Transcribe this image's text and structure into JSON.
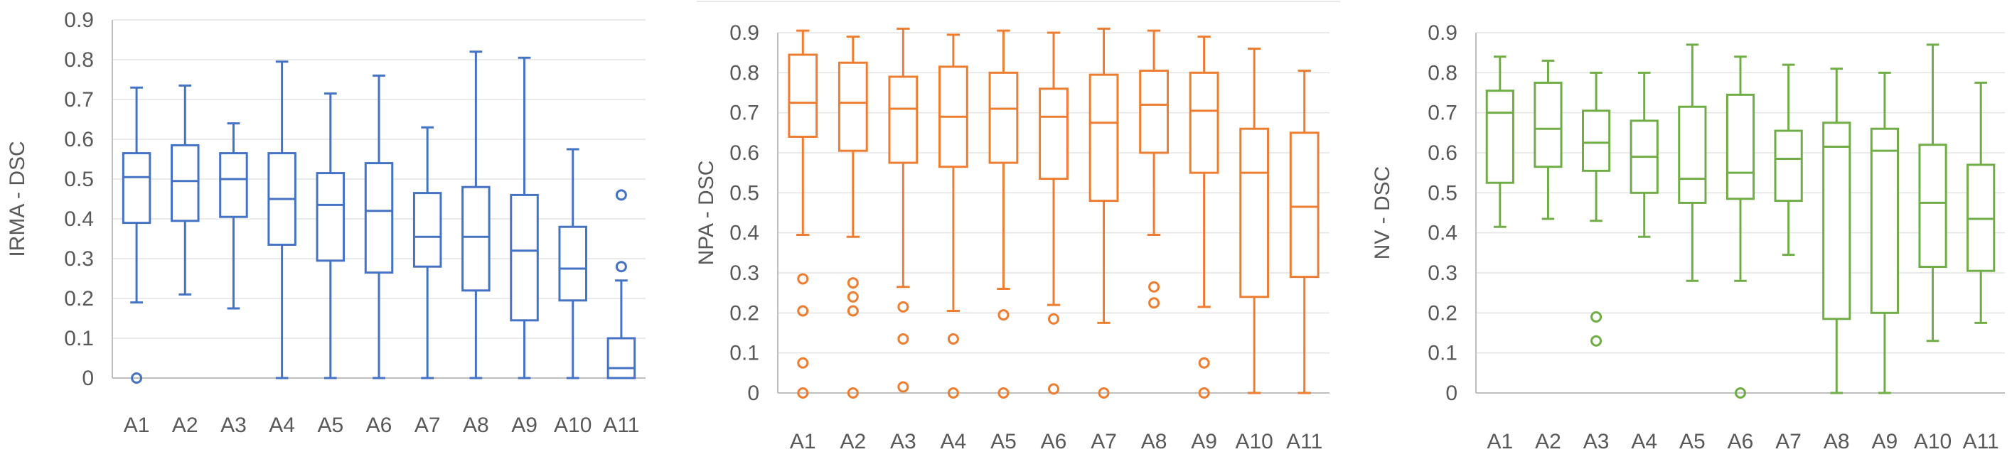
{
  "chart_data": [
    {
      "type": "boxplot",
      "ylabel": "IRMA - DSC",
      "ylim": [
        0,
        0.9
      ],
      "yticks": [
        "0",
        "0.1",
        "0.2",
        "0.3",
        "0.4",
        "0.5",
        "0.6",
        "0.7",
        "0.8",
        "0.9"
      ],
      "categories": [
        "A1",
        "A2",
        "A3",
        "A4",
        "A5",
        "A6",
        "A7",
        "A8",
        "A9",
        "A10",
        "A11"
      ],
      "color": "#4472C4",
      "grid": true,
      "boxes": [
        {
          "min": 0.19,
          "q1": 0.39,
          "median": 0.505,
          "q3": 0.565,
          "max": 0.73,
          "outliers": [
            0.0
          ]
        },
        {
          "min": 0.21,
          "q1": 0.395,
          "median": 0.495,
          "q3": 0.585,
          "max": 0.735,
          "outliers": []
        },
        {
          "min": 0.175,
          "q1": 0.405,
          "median": 0.5,
          "q3": 0.565,
          "max": 0.64,
          "outliers": []
        },
        {
          "min": 0.0,
          "q1": 0.335,
          "median": 0.45,
          "q3": 0.565,
          "max": 0.795,
          "outliers": []
        },
        {
          "min": 0.0,
          "q1": 0.295,
          "median": 0.435,
          "q3": 0.515,
          "max": 0.715,
          "outliers": []
        },
        {
          "min": 0.0,
          "q1": 0.265,
          "median": 0.42,
          "q3": 0.54,
          "max": 0.76,
          "outliers": []
        },
        {
          "min": 0.0,
          "q1": 0.28,
          "median": 0.355,
          "q3": 0.465,
          "max": 0.63,
          "outliers": []
        },
        {
          "min": 0.0,
          "q1": 0.22,
          "median": 0.355,
          "q3": 0.48,
          "max": 0.82,
          "outliers": []
        },
        {
          "min": 0.0,
          "q1": 0.145,
          "median": 0.32,
          "q3": 0.46,
          "max": 0.805,
          "outliers": []
        },
        {
          "min": 0.0,
          "q1": 0.195,
          "median": 0.275,
          "q3": 0.38,
          "max": 0.575,
          "outliers": []
        },
        {
          "min": 0.0,
          "q1": 0.0,
          "median": 0.025,
          "q3": 0.1,
          "max": 0.245,
          "outliers": [
            0.28,
            0.46
          ]
        }
      ]
    },
    {
      "type": "boxplot",
      "ylabel": "NPA - DSC",
      "ylim": [
        0,
        0.9
      ],
      "yticks": [
        "0",
        "0.1",
        "0.2",
        "0.3",
        "0.4",
        "0.5",
        "0.6",
        "0.7",
        "0.8",
        "0.9"
      ],
      "categories": [
        "A1",
        "A2",
        "A3",
        "A4",
        "A5",
        "A6",
        "A7",
        "A8",
        "A9",
        "A10",
        "A11"
      ],
      "color": "#ED7D31",
      "grid": true,
      "boxes": [
        {
          "min": 0.395,
          "q1": 0.64,
          "median": 0.725,
          "q3": 0.845,
          "max": 0.905,
          "outliers": [
            0.285,
            0.205,
            0.075,
            0.0
          ]
        },
        {
          "min": 0.39,
          "q1": 0.605,
          "median": 0.725,
          "q3": 0.825,
          "max": 0.89,
          "outliers": [
            0.275,
            0.24,
            0.205,
            0.0
          ]
        },
        {
          "min": 0.265,
          "q1": 0.575,
          "median": 0.71,
          "q3": 0.79,
          "max": 0.91,
          "outliers": [
            0.215,
            0.135,
            0.015
          ]
        },
        {
          "min": 0.205,
          "q1": 0.565,
          "median": 0.69,
          "q3": 0.815,
          "max": 0.895,
          "outliers": [
            0.135,
            0.0
          ]
        },
        {
          "min": 0.26,
          "q1": 0.575,
          "median": 0.71,
          "q3": 0.8,
          "max": 0.905,
          "outliers": [
            0.195,
            0.0
          ]
        },
        {
          "min": 0.22,
          "q1": 0.535,
          "median": 0.69,
          "q3": 0.76,
          "max": 0.9,
          "outliers": [
            0.185,
            0.01
          ]
        },
        {
          "min": 0.175,
          "q1": 0.48,
          "median": 0.675,
          "q3": 0.795,
          "max": 0.91,
          "outliers": [
            0.0
          ]
        },
        {
          "min": 0.395,
          "q1": 0.6,
          "median": 0.72,
          "q3": 0.805,
          "max": 0.905,
          "outliers": [
            0.265,
            0.225
          ]
        },
        {
          "min": 0.215,
          "q1": 0.55,
          "median": 0.705,
          "q3": 0.8,
          "max": 0.89,
          "outliers": [
            0.075,
            0.0
          ]
        },
        {
          "min": 0.0,
          "q1": 0.24,
          "median": 0.55,
          "q3": 0.66,
          "max": 0.86,
          "outliers": []
        },
        {
          "min": 0.0,
          "q1": 0.29,
          "median": 0.465,
          "q3": 0.65,
          "max": 0.805,
          "outliers": []
        }
      ]
    },
    {
      "type": "boxplot",
      "ylabel": "NV - DSC",
      "ylim": [
        0,
        0.9
      ],
      "yticks": [
        "0",
        "0.1",
        "0.2",
        "0.3",
        "0.4",
        "0.5",
        "0.6",
        "0.7",
        "0.8",
        "0.9"
      ],
      "categories": [
        "A1",
        "A2",
        "A3",
        "A4",
        "A5",
        "A6",
        "A7",
        "A8",
        "A9",
        "A10",
        "A11"
      ],
      "color": "#70AD47",
      "grid": true,
      "boxes": [
        {
          "min": 0.415,
          "q1": 0.525,
          "median": 0.7,
          "q3": 0.755,
          "max": 0.84,
          "outliers": []
        },
        {
          "min": 0.435,
          "q1": 0.565,
          "median": 0.66,
          "q3": 0.775,
          "max": 0.83,
          "outliers": []
        },
        {
          "min": 0.43,
          "q1": 0.555,
          "median": 0.625,
          "q3": 0.705,
          "max": 0.8,
          "outliers": [
            0.19,
            0.13
          ]
        },
        {
          "min": 0.39,
          "q1": 0.5,
          "median": 0.59,
          "q3": 0.68,
          "max": 0.8,
          "outliers": []
        },
        {
          "min": 0.28,
          "q1": 0.475,
          "median": 0.535,
          "q3": 0.715,
          "max": 0.87,
          "outliers": []
        },
        {
          "min": 0.28,
          "q1": 0.485,
          "median": 0.55,
          "q3": 0.745,
          "max": 0.84,
          "outliers": [
            0.0
          ]
        },
        {
          "min": 0.345,
          "q1": 0.48,
          "median": 0.585,
          "q3": 0.655,
          "max": 0.82,
          "outliers": []
        },
        {
          "min": 0.0,
          "q1": 0.185,
          "median": 0.615,
          "q3": 0.675,
          "max": 0.81,
          "outliers": []
        },
        {
          "min": 0.0,
          "q1": 0.2,
          "median": 0.605,
          "q3": 0.66,
          "max": 0.8,
          "outliers": []
        },
        {
          "min": 0.13,
          "q1": 0.315,
          "median": 0.475,
          "q3": 0.62,
          "max": 0.87,
          "outliers": []
        },
        {
          "min": 0.175,
          "q1": 0.305,
          "median": 0.435,
          "q3": 0.57,
          "max": 0.775,
          "outliers": []
        }
      ]
    }
  ]
}
